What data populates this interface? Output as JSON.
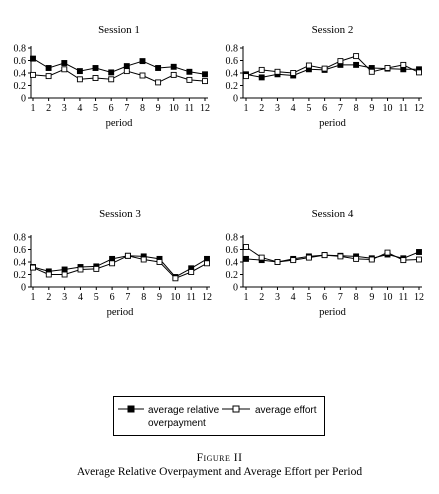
{
  "figure": {
    "label": "Figure II",
    "title": "Average Relative Overpayment and Average Effort per Period"
  },
  "legend": {
    "overpayment_line1": "average relative",
    "overpayment_line2": "overpayment",
    "effort": "average effort"
  },
  "chart_data": [
    {
      "type": "line",
      "title": "Session 1",
      "xlabel": "period",
      "ylabel": "",
      "x": [
        1,
        2,
        3,
        4,
        5,
        6,
        7,
        8,
        9,
        10,
        11,
        12
      ],
      "ylim": [
        0,
        0.8
      ],
      "yticks": [
        0,
        0.2,
        0.4,
        0.6,
        0.8
      ],
      "series": [
        {
          "name": "average relative overpayment",
          "marker": "filled-square",
          "values": [
            0.63,
            0.48,
            0.56,
            0.43,
            0.48,
            0.41,
            0.51,
            0.59,
            0.48,
            0.5,
            0.42,
            0.38
          ]
        },
        {
          "name": "average effort",
          "marker": "open-square",
          "values": [
            0.37,
            0.35,
            0.46,
            0.3,
            0.32,
            0.3,
            0.43,
            0.36,
            0.25,
            0.37,
            0.29,
            0.27
          ]
        }
      ]
    },
    {
      "type": "line",
      "title": "Session 2",
      "xlabel": "period",
      "ylabel": "",
      "x": [
        1,
        2,
        3,
        4,
        5,
        6,
        7,
        8,
        9,
        10,
        11,
        12
      ],
      "ylim": [
        0,
        0.8
      ],
      "yticks": [
        0,
        0.2,
        0.4,
        0.6,
        0.8
      ],
      "series": [
        {
          "name": "average relative overpayment",
          "marker": "filled-square",
          "values": [
            0.38,
            0.33,
            0.38,
            0.36,
            0.46,
            0.45,
            0.53,
            0.53,
            0.48,
            0.47,
            0.46,
            0.46
          ]
        },
        {
          "name": "average effort",
          "marker": "open-square",
          "values": [
            0.35,
            0.45,
            0.42,
            0.4,
            0.52,
            0.47,
            0.59,
            0.67,
            0.42,
            0.48,
            0.53,
            0.41
          ]
        }
      ]
    },
    {
      "type": "line",
      "title": "Session 3",
      "xlabel": "period",
      "ylabel": "",
      "x": [
        1,
        2,
        3,
        4,
        5,
        6,
        7,
        8,
        9,
        10,
        11,
        12
      ],
      "ylim": [
        0,
        0.8
      ],
      "yticks": [
        0,
        0.2,
        0.4,
        0.6,
        0.8
      ],
      "series": [
        {
          "name": "average relative overpayment",
          "marker": "filled-square",
          "values": [
            0.32,
            0.25,
            0.28,
            0.32,
            0.33,
            0.45,
            0.5,
            0.49,
            0.45,
            0.16,
            0.3,
            0.45
          ]
        },
        {
          "name": "average effort",
          "marker": "open-square",
          "values": [
            0.31,
            0.2,
            0.2,
            0.28,
            0.29,
            0.38,
            0.5,
            0.44,
            0.4,
            0.14,
            0.24,
            0.38
          ]
        }
      ]
    },
    {
      "type": "line",
      "title": "Session 4",
      "xlabel": "period",
      "ylabel": "",
      "x": [
        1,
        2,
        3,
        4,
        5,
        6,
        7,
        8,
        9,
        10,
        11,
        12
      ],
      "ylim": [
        0,
        0.8
      ],
      "yticks": [
        0,
        0.2,
        0.4,
        0.6,
        0.8
      ],
      "series": [
        {
          "name": "average relative overpayment",
          "marker": "filled-square",
          "values": [
            0.45,
            0.43,
            0.4,
            0.45,
            0.49,
            0.51,
            0.5,
            0.49,
            0.46,
            0.52,
            0.46,
            0.56
          ]
        },
        {
          "name": "average effort",
          "marker": "open-square",
          "values": [
            0.64,
            0.47,
            0.4,
            0.43,
            0.47,
            0.51,
            0.49,
            0.45,
            0.44,
            0.55,
            0.43,
            0.44
          ]
        }
      ]
    }
  ]
}
